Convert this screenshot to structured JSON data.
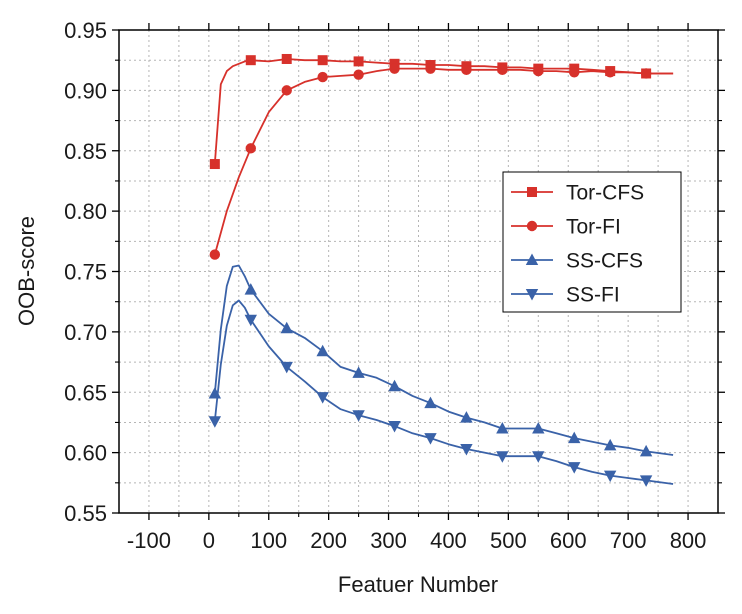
{
  "chart_data": {
    "type": "line",
    "title": "",
    "xlabel": "Featuer Number",
    "ylabel": "OOB-score",
    "xlim": [
      -150,
      850
    ],
    "ylim": [
      0.55,
      0.95
    ],
    "xticks": [
      -100,
      0,
      100,
      200,
      300,
      400,
      500,
      600,
      700,
      800
    ],
    "yticks": [
      0.55,
      0.6,
      0.65,
      0.7,
      0.75,
      0.8,
      0.85,
      0.9,
      0.95
    ],
    "grid": true,
    "legend_position": "center-right",
    "series": [
      {
        "name": "Tor-CFS",
        "color": "#d7312b",
        "marker": "square",
        "x": [
          10,
          20,
          30,
          40,
          50,
          60,
          70,
          100,
          130,
          160,
          190,
          220,
          250,
          280,
          310,
          340,
          370,
          400,
          430,
          460,
          490,
          520,
          550,
          580,
          610,
          640,
          670,
          700,
          730,
          775
        ],
        "y": [
          0.839,
          0.905,
          0.916,
          0.92,
          0.922,
          0.924,
          0.925,
          0.924,
          0.926,
          0.925,
          0.925,
          0.924,
          0.924,
          0.923,
          0.922,
          0.922,
          0.921,
          0.921,
          0.92,
          0.92,
          0.919,
          0.919,
          0.918,
          0.918,
          0.918,
          0.917,
          0.916,
          0.915,
          0.914,
          0.914
        ],
        "marker_x": [
          10,
          70,
          130,
          190,
          250,
          310,
          370,
          430,
          490,
          550,
          610,
          670,
          730
        ],
        "marker_y": [
          0.839,
          0.925,
          0.926,
          0.925,
          0.924,
          0.922,
          0.921,
          0.92,
          0.919,
          0.918,
          0.918,
          0.916,
          0.914
        ]
      },
      {
        "name": "Tor-FI",
        "color": "#d7312b",
        "marker": "circle",
        "x": [
          10,
          30,
          50,
          70,
          100,
          130,
          160,
          190,
          220,
          250,
          280,
          310,
          340,
          370,
          400,
          430,
          460,
          490,
          520,
          550,
          580,
          610,
          640,
          670,
          700,
          730,
          775
        ],
        "y": [
          0.764,
          0.8,
          0.828,
          0.852,
          0.882,
          0.9,
          0.907,
          0.911,
          0.912,
          0.913,
          0.916,
          0.918,
          0.918,
          0.918,
          0.917,
          0.917,
          0.917,
          0.917,
          0.917,
          0.916,
          0.916,
          0.915,
          0.916,
          0.915,
          0.915,
          0.914,
          0.914
        ],
        "marker_x": [
          10,
          70,
          130,
          190,
          250,
          310,
          370,
          430,
          490,
          550,
          610,
          670,
          730
        ],
        "marker_y": [
          0.764,
          0.852,
          0.9,
          0.911,
          0.913,
          0.918,
          0.918,
          0.917,
          0.917,
          0.916,
          0.915,
          0.915,
          0.914
        ]
      },
      {
        "name": "SS-CFS",
        "color": "#3a62a8",
        "marker": "triangle-up",
        "x": [
          10,
          20,
          30,
          40,
          50,
          60,
          70,
          100,
          130,
          160,
          190,
          220,
          250,
          280,
          310,
          340,
          370,
          400,
          430,
          460,
          490,
          520,
          550,
          580,
          610,
          640,
          670,
          700,
          730,
          775
        ],
        "y": [
          0.649,
          0.702,
          0.738,
          0.754,
          0.755,
          0.746,
          0.735,
          0.715,
          0.703,
          0.695,
          0.684,
          0.671,
          0.666,
          0.662,
          0.655,
          0.647,
          0.641,
          0.634,
          0.629,
          0.625,
          0.62,
          0.62,
          0.62,
          0.616,
          0.612,
          0.609,
          0.606,
          0.604,
          0.601,
          0.598
        ],
        "marker_x": [
          10,
          70,
          130,
          190,
          250,
          310,
          370,
          430,
          490,
          550,
          610,
          670,
          730
        ],
        "marker_y": [
          0.649,
          0.735,
          0.703,
          0.684,
          0.666,
          0.655,
          0.641,
          0.629,
          0.62,
          0.62,
          0.612,
          0.606,
          0.601
        ]
      },
      {
        "name": "SS-FI",
        "color": "#3a62a8",
        "marker": "triangle-down",
        "x": [
          10,
          20,
          30,
          40,
          50,
          60,
          70,
          100,
          130,
          160,
          190,
          220,
          250,
          280,
          310,
          340,
          370,
          400,
          430,
          460,
          490,
          520,
          550,
          580,
          610,
          640,
          670,
          700,
          730,
          775
        ],
        "y": [
          0.626,
          0.673,
          0.705,
          0.722,
          0.726,
          0.72,
          0.71,
          0.688,
          0.671,
          0.659,
          0.646,
          0.636,
          0.631,
          0.627,
          0.622,
          0.616,
          0.612,
          0.607,
          0.603,
          0.6,
          0.597,
          0.597,
          0.597,
          0.593,
          0.588,
          0.584,
          0.581,
          0.579,
          0.577,
          0.574
        ],
        "marker_x": [
          10,
          70,
          130,
          190,
          250,
          310,
          370,
          430,
          490,
          550,
          610,
          670,
          730
        ],
        "marker_y": [
          0.626,
          0.71,
          0.671,
          0.646,
          0.631,
          0.622,
          0.612,
          0.603,
          0.597,
          0.597,
          0.588,
          0.581,
          0.577
        ]
      }
    ]
  }
}
